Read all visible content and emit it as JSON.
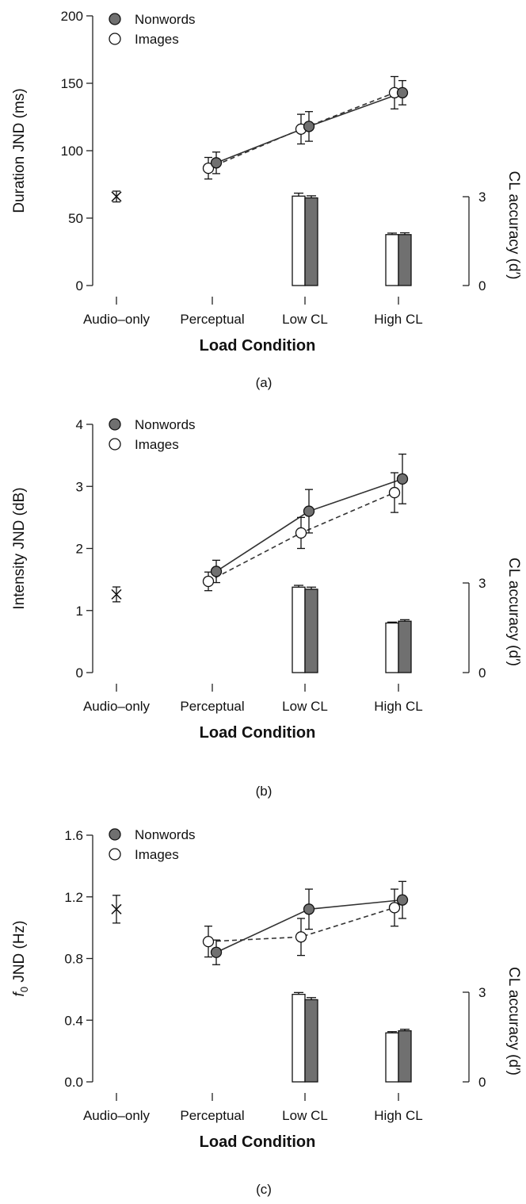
{
  "colors": {
    "nonwords_fill": "#707070",
    "images_fill": "#ffffff",
    "line": "#333333",
    "text": "#111111"
  },
  "chart_data": [
    {
      "type": "line",
      "caption": "(a)",
      "xlabel": "Load Condition",
      "ylabel": "Duration JND (ms)",
      "y2label": "CL accuracy (d′)",
      "categories": [
        "Audio–only",
        "Perceptual",
        "Low CL",
        "High CL"
      ],
      "ylim": [
        0,
        200
      ],
      "yticks": [
        "0",
        "50",
        "100",
        "150",
        "200"
      ],
      "y2lim": [
        0,
        3
      ],
      "y2ticks": [
        "0",
        "3"
      ],
      "audio_only": {
        "value": 66,
        "error": 4
      },
      "series": [
        {
          "name": "Nonwords",
          "values": [
            null,
            91,
            118,
            143
          ],
          "errors": [
            null,
            8,
            11,
            9
          ],
          "line": "solid"
        },
        {
          "name": "Images",
          "values": [
            null,
            87,
            116,
            143
          ],
          "errors": [
            null,
            8,
            11,
            12
          ],
          "line": "dashed"
        }
      ],
      "accuracy_bars": {
        "categories": [
          "Low CL",
          "High CL"
        ],
        "series": [
          {
            "name": "Images",
            "values": [
              3.02,
              1.72
            ],
            "errors": [
              0.1,
              0.05
            ]
          },
          {
            "name": "Nonwords",
            "values": [
              2.96,
              1.72
            ],
            "errors": [
              0.07,
              0.06
            ]
          }
        ]
      },
      "legend": [
        "Nonwords",
        "Images"
      ],
      "legend_position": "top-left"
    },
    {
      "type": "line",
      "caption": "(b)",
      "xlabel": "Load Condition",
      "ylabel": "Intensity JND (dB)",
      "y2label": "CL accuracy (d′)",
      "categories": [
        "Audio–only",
        "Perceptual",
        "Low CL",
        "High CL"
      ],
      "ylim": [
        0,
        4
      ],
      "yticks": [
        "0",
        "1",
        "2",
        "3",
        "4"
      ],
      "y2lim": [
        0,
        3
      ],
      "y2ticks": [
        "0",
        "3"
      ],
      "audio_only": {
        "value": 1.26,
        "error": 0.12
      },
      "series": [
        {
          "name": "Nonwords",
          "values": [
            null,
            1.63,
            2.6,
            3.12
          ],
          "errors": [
            null,
            0.18,
            0.35,
            0.4
          ],
          "line": "solid"
        },
        {
          "name": "Images",
          "values": [
            null,
            1.47,
            2.25,
            2.9
          ],
          "errors": [
            null,
            0.15,
            0.25,
            0.32
          ],
          "line": "dashed"
        }
      ],
      "accuracy_bars": {
        "categories": [
          "Low CL",
          "High CL"
        ],
        "series": [
          {
            "name": "Images",
            "values": [
              2.86,
              1.66
            ],
            "errors": [
              0.06,
              0.03
            ]
          },
          {
            "name": "Nonwords",
            "values": [
              2.79,
              1.72
            ],
            "errors": [
              0.07,
              0.05
            ]
          }
        ]
      },
      "legend": [
        "Nonwords",
        "Images"
      ],
      "legend_position": "top-left"
    },
    {
      "type": "line",
      "caption": "(c)",
      "xlabel": "Load Condition",
      "ylabel": "f0 JND (Hz)",
      "ylabel_main": "f",
      "ylabel_sub": "0",
      "ylabel_rest": " JND (Hz)",
      "y2label": "CL accuracy (d′)",
      "categories": [
        "Audio–only",
        "Perceptual",
        "Low CL",
        "High CL"
      ],
      "ylim": [
        0,
        1.6
      ],
      "yticks": [
        "0.0",
        "0.4",
        "0.8",
        "1.2",
        "1.6"
      ],
      "y2lim": [
        0,
        3
      ],
      "y2ticks": [
        "0",
        "3"
      ],
      "audio_only": {
        "value": 1.12,
        "error": 0.09
      },
      "series": [
        {
          "name": "Nonwords",
          "values": [
            null,
            0.84,
            1.12,
            1.18
          ],
          "errors": [
            null,
            0.08,
            0.13,
            0.12
          ],
          "line": "solid"
        },
        {
          "name": "Images",
          "values": [
            null,
            0.91,
            0.94,
            1.13
          ],
          "errors": [
            null,
            0.1,
            0.12,
            0.12
          ],
          "line": "dashed"
        }
      ],
      "accuracy_bars": {
        "categories": [
          "Low CL",
          "High CL"
        ],
        "series": [
          {
            "name": "Images",
            "values": [
              2.93,
              1.64
            ],
            "errors": [
              0.06,
              0.04
            ]
          },
          {
            "name": "Nonwords",
            "values": [
              2.75,
              1.71
            ],
            "errors": [
              0.07,
              0.05
            ]
          }
        ]
      },
      "legend": [
        "Nonwords",
        "Images"
      ],
      "legend_position": "top-left"
    }
  ]
}
